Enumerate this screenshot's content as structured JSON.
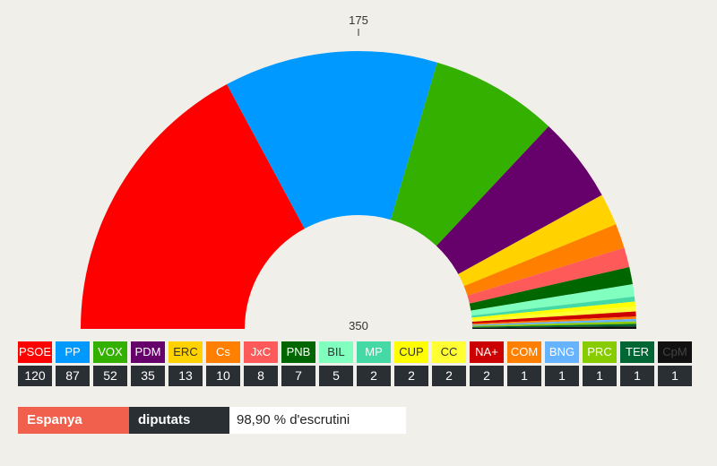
{
  "chart_data": {
    "type": "pie",
    "subtype": "parliament-half-donut",
    "total_seats": 350,
    "majority": 175,
    "majority_label": "175",
    "total_label": "350",
    "parties": [
      {
        "abbr": "PSOE",
        "seats": 120,
        "color": "#ff0000",
        "text_color": "#ffffff"
      },
      {
        "abbr": "PP",
        "seats": 87,
        "color": "#0099ff",
        "text_color": "#ffffff"
      },
      {
        "abbr": "VOX",
        "seats": 52,
        "color": "#33b000",
        "text_color": "#ffffff"
      },
      {
        "abbr": "PDM",
        "seats": 35,
        "color": "#66006a",
        "text_color": "#ffffff"
      },
      {
        "abbr": "ERC",
        "seats": 13,
        "color": "#ffd200",
        "text_color": "#333333"
      },
      {
        "abbr": "Cs",
        "seats": 10,
        "color": "#ff8000",
        "text_color": "#ffffff"
      },
      {
        "abbr": "JxC",
        "seats": 8,
        "color": "#ff5a5a",
        "text_color": "#ffffff"
      },
      {
        "abbr": "PNB",
        "seats": 7,
        "color": "#006600",
        "text_color": "#ffffff"
      },
      {
        "abbr": "BIL",
        "seats": 5,
        "color": "#80ffbf",
        "text_color": "#333333"
      },
      {
        "abbr": "MP",
        "seats": 2,
        "color": "#44d9a5",
        "text_color": "#ffffff"
      },
      {
        "abbr": "CUP",
        "seats": 2,
        "color": "#ffff00",
        "text_color": "#333333"
      },
      {
        "abbr": "CC",
        "seats": 2,
        "color": "#ffff33",
        "text_color": "#333333"
      },
      {
        "abbr": "NA+",
        "seats": 2,
        "color": "#cc0000",
        "text_color": "#ffffff"
      },
      {
        "abbr": "COM",
        "seats": 1,
        "color": "#ff8000",
        "text_color": "#ffffff"
      },
      {
        "abbr": "BNG",
        "seats": 1,
        "color": "#66b3ff",
        "text_color": "#ffffff"
      },
      {
        "abbr": "PRC",
        "seats": 1,
        "color": "#88cc00",
        "text_color": "#ffffff"
      },
      {
        "abbr": "TER",
        "seats": 1,
        "color": "#006633",
        "text_color": "#ffffff"
      },
      {
        "abbr": "CpM",
        "seats": 1,
        "color": "#111111",
        "text_color": "#444444"
      }
    ]
  },
  "footer": {
    "region": "Espanya",
    "metric": "diputats",
    "scrutiny": "98,90 % d'escrutini"
  }
}
